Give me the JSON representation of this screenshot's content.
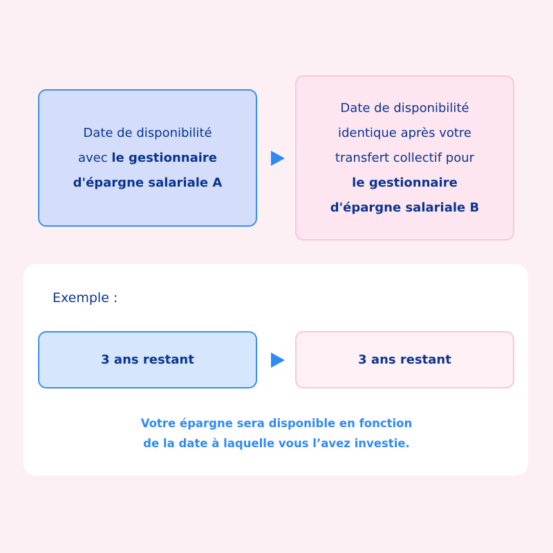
{
  "top": {
    "box_a": {
      "line1": "Date de disponibilité",
      "line2_plain": "avec ",
      "line2_bold": "le gestionnaire",
      "line3_bold": "d'épargne salariale A"
    },
    "box_b": {
      "line1": "Date de disponibilité",
      "line2": "identique après votre",
      "line3": "transfert collectif pour",
      "line4_bold": "le gestionnaire",
      "line5_bold": "d'épargne salariale B"
    },
    "arrow_icon": "triangle-right"
  },
  "example": {
    "label": "Exemple :",
    "box_a": "3 ans restant",
    "box_b": "3 ans restant",
    "footer_line1": "Votre épargne sera disponible en fonction",
    "footer_line2": "de la date à laquelle vous l’avez investie."
  },
  "colors": {
    "background": "#fdf0f5",
    "text": "#0b3492",
    "accent": "#2f8af5",
    "box_a": "#d4defa",
    "box_b": "#fde6ef"
  }
}
